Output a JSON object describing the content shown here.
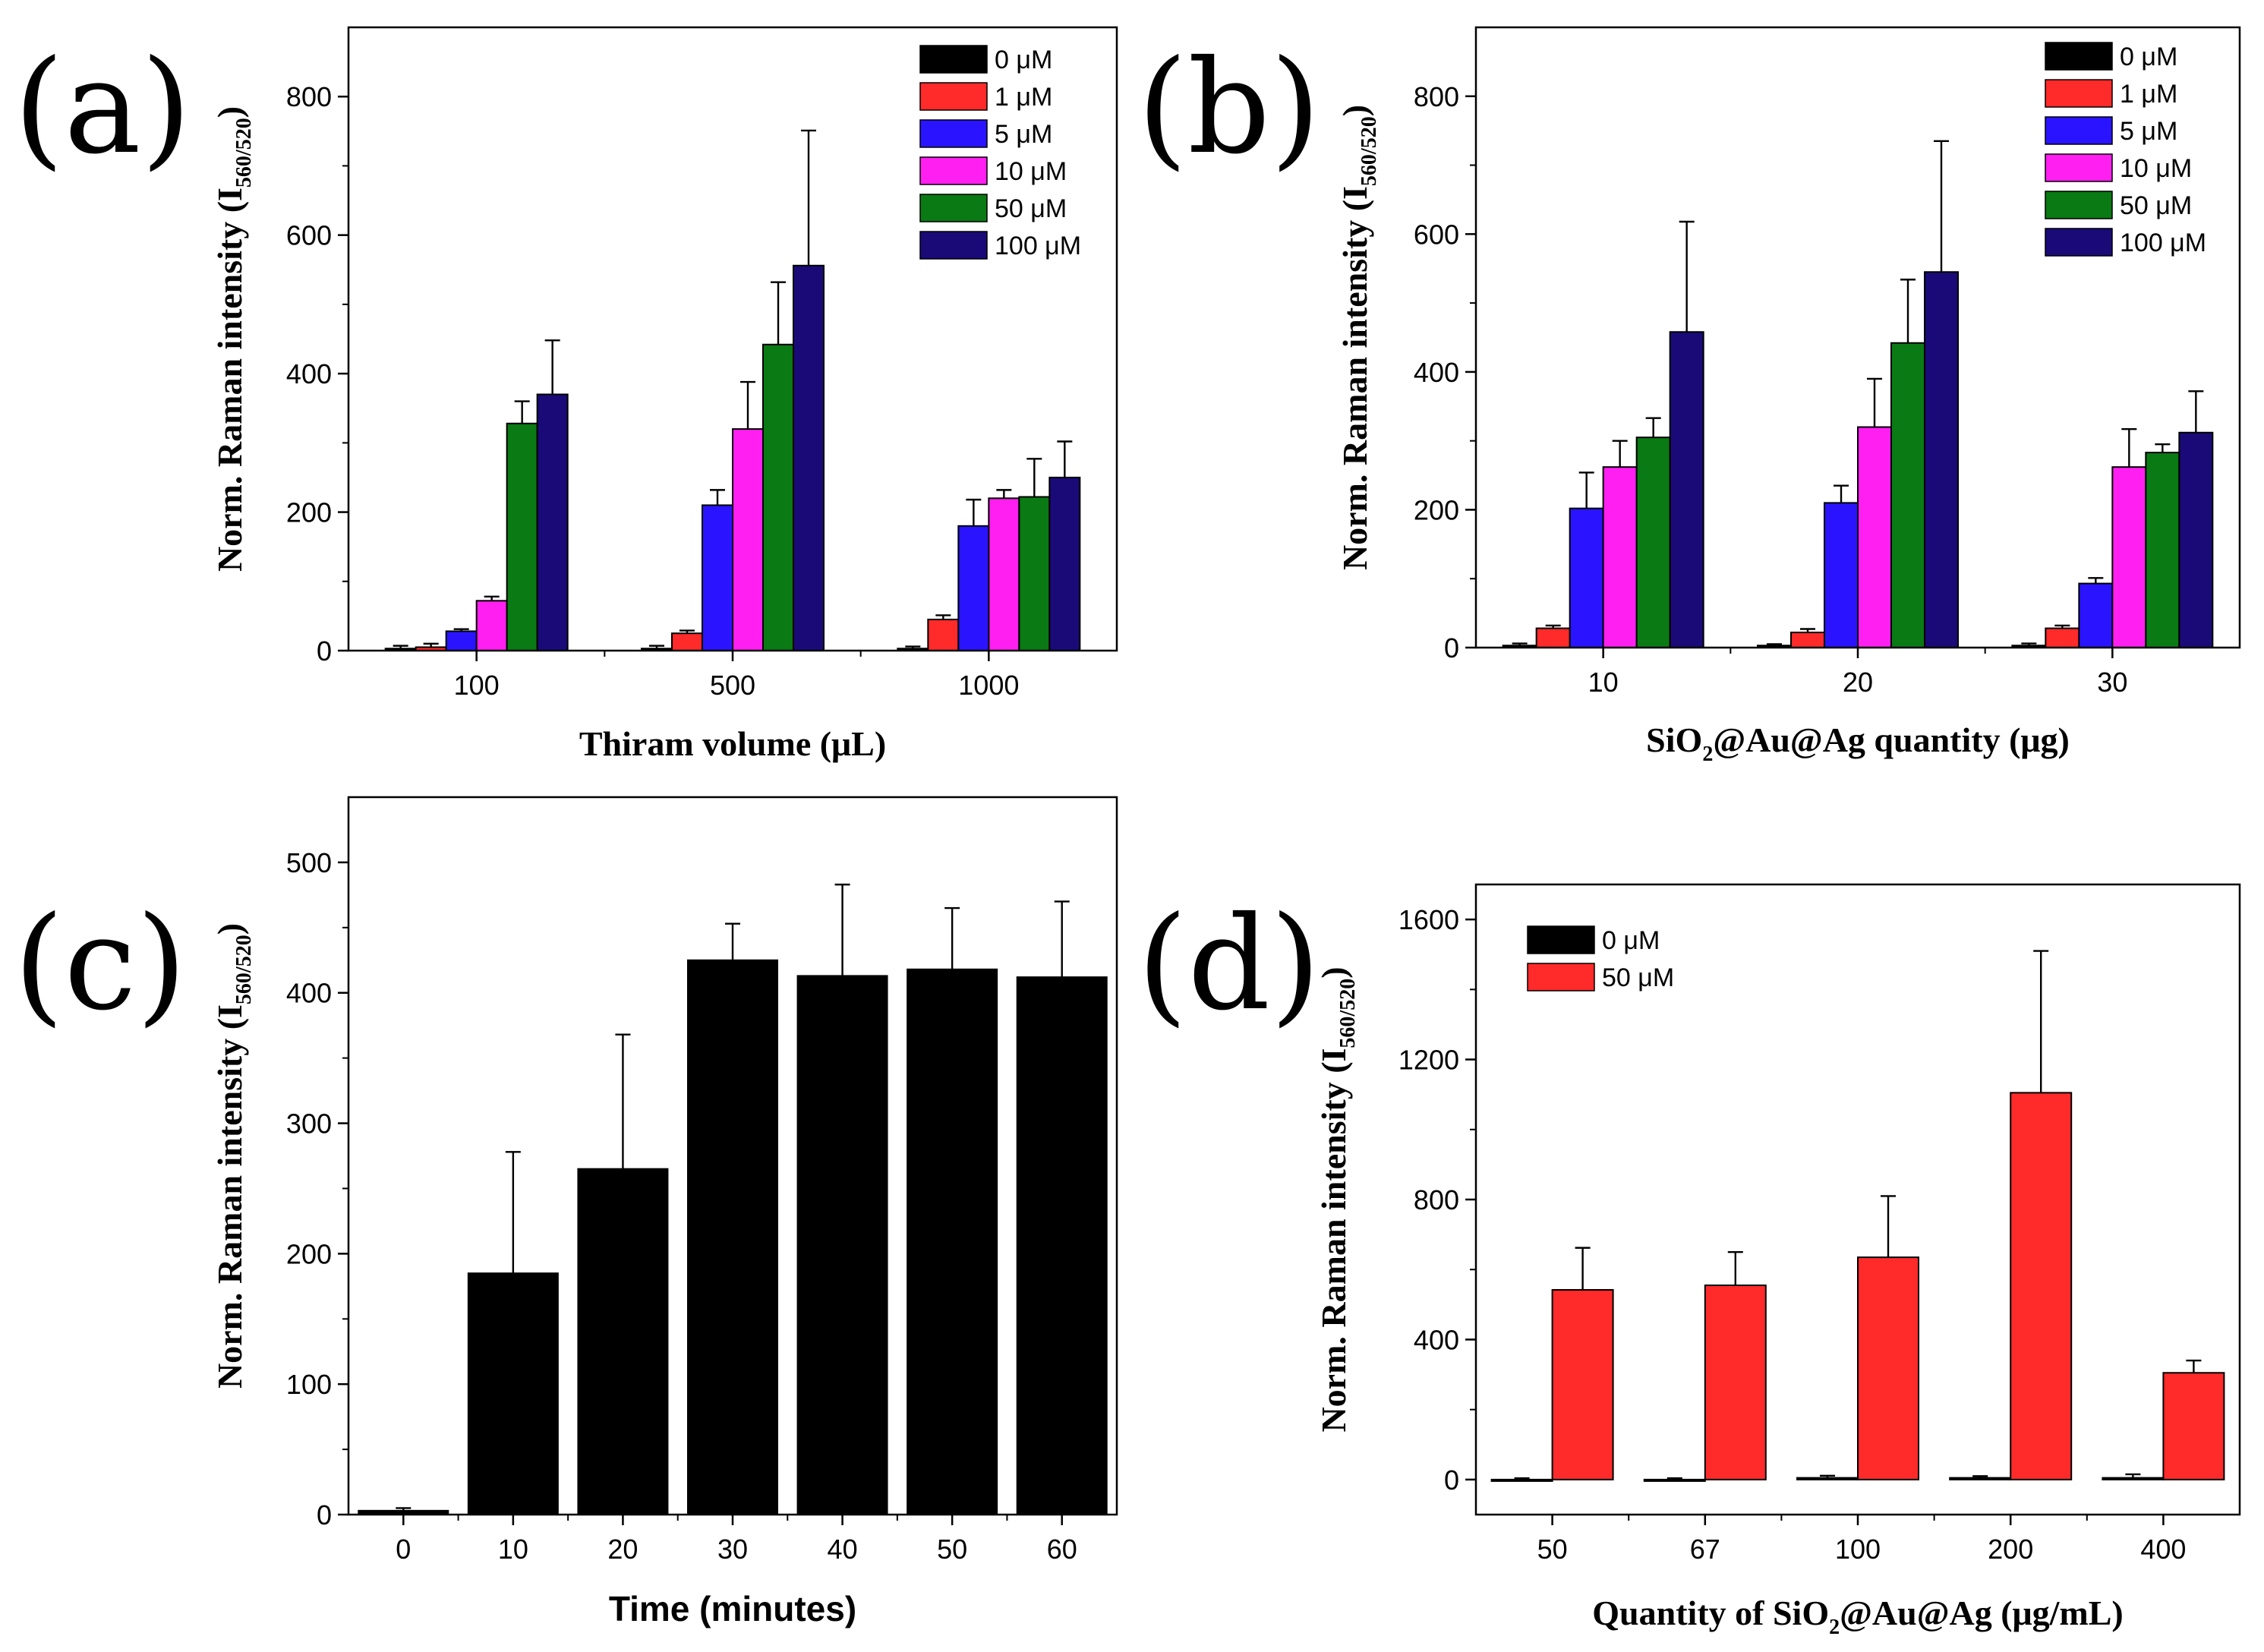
{
  "colors": {
    "0 µM": "#000000",
    "1 µM": "#ff2a2a",
    "5 µM": "#2a14ff",
    "10 µM": "#ff1ff0",
    "50 µM": "#0a7a14",
    "100 µM": "#1a0a78"
  },
  "chart_data": [
    {
      "panel": "(a)",
      "type": "bar",
      "title": "",
      "xlabel": "Thiram volume (μL)",
      "ylabel": {
        "main": "Norm. Raman intensity (I",
        "sub": "560/520",
        "close": ")"
      },
      "ylim": [
        0,
        900
      ],
      "yticks": [
        0,
        200,
        400,
        600,
        800
      ],
      "categories": [
        "100",
        "500",
        "1000"
      ],
      "legend_position": "top-right",
      "series": [
        {
          "name": "0 μM",
          "color_key": "0 µM",
          "values": [
            3,
            3,
            3
          ],
          "errors": [
            4,
            4,
            3
          ]
        },
        {
          "name": "1 μM",
          "color_key": "1 µM",
          "values": [
            5,
            25,
            45
          ],
          "errors": [
            5,
            4,
            6
          ]
        },
        {
          "name": "5 μM",
          "color_key": "5 µM",
          "values": [
            28,
            210,
            180
          ],
          "errors": [
            3,
            22,
            38
          ]
        },
        {
          "name": "10 μM",
          "color_key": "10 µM",
          "values": [
            72,
            320,
            220
          ],
          "errors": [
            6,
            68,
            12
          ]
        },
        {
          "name": "50 μM",
          "color_key": "50 µM",
          "values": [
            328,
            442,
            222
          ],
          "errors": [
            32,
            90,
            55
          ]
        },
        {
          "name": "100 μM",
          "color_key": "100 µM",
          "values": [
            370,
            556,
            250
          ],
          "errors": [
            78,
            195,
            52
          ]
        }
      ]
    },
    {
      "panel": "(b)",
      "type": "bar",
      "title": "",
      "xlabel": {
        "pre": "SiO",
        "sub": "2",
        "post": "@Au@Ag quantity (μg)"
      },
      "ylabel": {
        "main": "Norm. Raman intensity (I",
        "sub": "560/520",
        "close": ")"
      },
      "ylim": [
        0,
        900
      ],
      "yticks": [
        0,
        200,
        400,
        600,
        800
      ],
      "categories": [
        "10",
        "20",
        "30"
      ],
      "legend_position": "top-right",
      "series": [
        {
          "name": "0 μM",
          "color_key": "0 µM",
          "values": [
            3,
            3,
            3
          ],
          "errors": [
            3,
            2,
            3
          ]
        },
        {
          "name": "1 μM",
          "color_key": "1 µM",
          "values": [
            28,
            22,
            28
          ],
          "errors": [
            4,
            5,
            4
          ]
        },
        {
          "name": "5 μM",
          "color_key": "5 µM",
          "values": [
            202,
            210,
            93
          ],
          "errors": [
            52,
            25,
            8
          ]
        },
        {
          "name": "10 μM",
          "color_key": "10 µM",
          "values": [
            262,
            320,
            262
          ],
          "errors": [
            38,
            70,
            55
          ]
        },
        {
          "name": "50 μM",
          "color_key": "50 µM",
          "values": [
            305,
            442,
            283
          ],
          "errors": [
            28,
            92,
            12
          ]
        },
        {
          "name": "100 μM",
          "color_key": "100 µM",
          "values": [
            458,
            545,
            312
          ],
          "errors": [
            160,
            190,
            60
          ]
        }
      ]
    },
    {
      "panel": "(c)",
      "type": "bar",
      "title": "",
      "xlabel": "Time (minutes)",
      "ylabel": {
        "main": "Norm. Raman intensity (I",
        "sub": "560/520",
        "close": ")"
      },
      "ylim": [
        0,
        550
      ],
      "yticks": [
        0,
        100,
        200,
        300,
        400,
        500
      ],
      "categories": [
        "0",
        "10",
        "20",
        "30",
        "40",
        "50",
        "60"
      ],
      "series": [
        {
          "name": "",
          "color_key": "0 µM",
          "values": [
            3,
            185,
            265,
            425,
            413,
            418,
            412
          ],
          "errors": [
            2,
            93,
            103,
            28,
            70,
            47,
            58
          ]
        }
      ]
    },
    {
      "panel": "(d)",
      "type": "bar",
      "title": "",
      "xlabel": {
        "pre": "Quantity of SiO",
        "sub": "2",
        "post": "@Au@Ag (μg/mL)"
      },
      "ylabel": {
        "main": "Norm. Raman intensity (I",
        "sub": "560/520",
        "close": ")"
      },
      "ylim": [
        -100,
        1700
      ],
      "yticks": [
        0,
        400,
        800,
        1200,
        1600
      ],
      "categories": [
        "50",
        "67",
        "100",
        "200",
        "400"
      ],
      "legend_position": "top-left",
      "series": [
        {
          "name": "0 μM",
          "color_key": "0 µM",
          "values": [
            0,
            0,
            5,
            5,
            5
          ],
          "errors": [
            4,
            4,
            6,
            5,
            10
          ]
        },
        {
          "name": "50 μM",
          "color_key": "1 µM",
          "values": [
            542,
            555,
            635,
            1105,
            305
          ],
          "errors": [
            120,
            95,
            175,
            405,
            35
          ]
        }
      ]
    }
  ]
}
